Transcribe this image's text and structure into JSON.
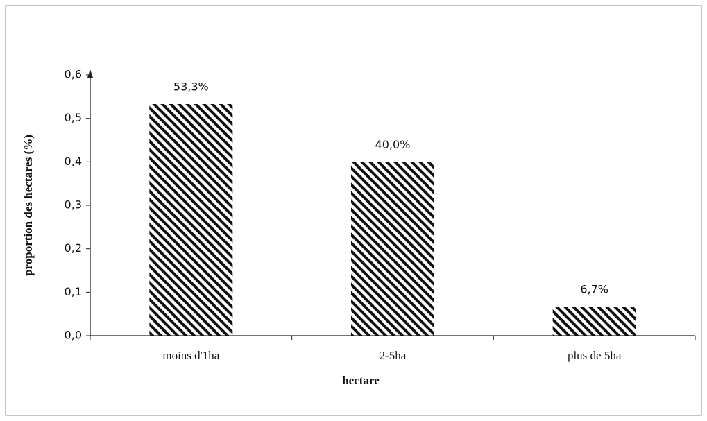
{
  "chart_data": {
    "type": "bar",
    "categories": [
      "moins d'1ha",
      "2-5ha",
      "plus de 5ha"
    ],
    "values": [
      0.533,
      0.4,
      0.067
    ],
    "value_labels": [
      "53,3%",
      "40,0%",
      "6,7%"
    ],
    "color": "#111111",
    "y_label": "proportion des hectares (%)",
    "x_label": "hectare",
    "ylim": [
      0,
      0.6
    ],
    "yticks": [
      {
        "value": 0,
        "label": "0,0"
      },
      {
        "value": 0.1,
        "label": "0,1"
      },
      {
        "value": 0.2,
        "label": "0,2"
      },
      {
        "value": 0.3,
        "label": "0,3"
      },
      {
        "value": 0.4,
        "label": "0,4"
      },
      {
        "value": 0.5,
        "label": "0,5"
      },
      {
        "value": 0.6,
        "label": "0,6"
      }
    ]
  }
}
